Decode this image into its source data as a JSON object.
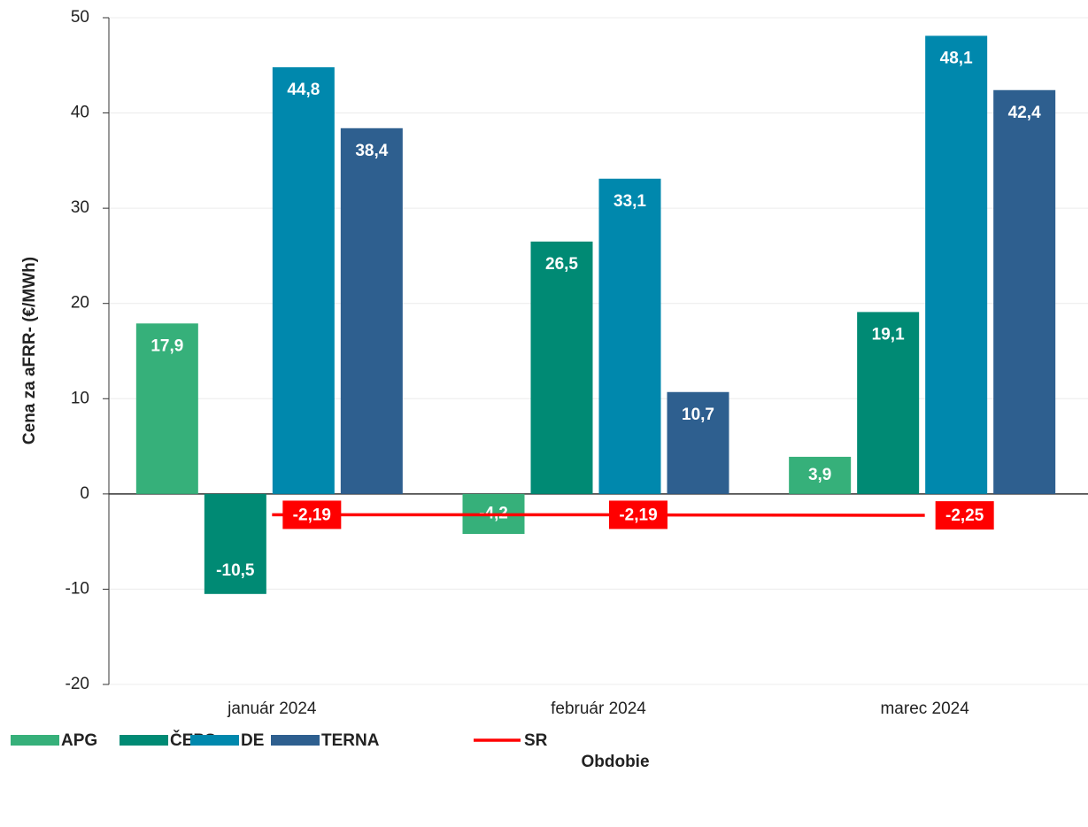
{
  "chart_data": {
    "type": "bar",
    "x_label": "Obdobie",
    "y_label": "Cena za aFRR- (€/MWh)",
    "categories": [
      "január 2024",
      "február 2024",
      "marec 2024"
    ],
    "ylim": [
      -20,
      50
    ],
    "yticks": [
      -20,
      -10,
      0,
      10,
      20,
      30,
      40,
      50
    ],
    "grid": true,
    "legend": "bottom-left",
    "series": [
      {
        "name": "APG",
        "color": "#36b07a",
        "values": [
          17.9,
          -4.2,
          3.9
        ],
        "value_labels": [
          "17,9",
          "-4,2",
          "3,9"
        ]
      },
      {
        "name": "ČEPS",
        "color": "#008a74",
        "values": [
          -10.5,
          26.5,
          19.1
        ],
        "value_labels": [
          "-10,5",
          "26,5",
          "19,1"
        ]
      },
      {
        "name": "DE",
        "color": "#0088ad",
        "values": [
          44.8,
          33.1,
          48.1
        ],
        "value_labels": [
          "44,8",
          "33,1",
          "48,1"
        ]
      },
      {
        "name": "TERNA",
        "color": "#2e5f8f",
        "values": [
          38.4,
          10.7,
          42.4
        ],
        "value_labels": [
          "38,4",
          "10,7",
          "42,4"
        ]
      },
      {
        "name": "SR",
        "type": "line",
        "color": "#ff0000",
        "values": [
          -2.19,
          -2.19,
          -2.25
        ],
        "value_labels": [
          "-2,19",
          "-2,19",
          "-2,25"
        ]
      }
    ]
  }
}
